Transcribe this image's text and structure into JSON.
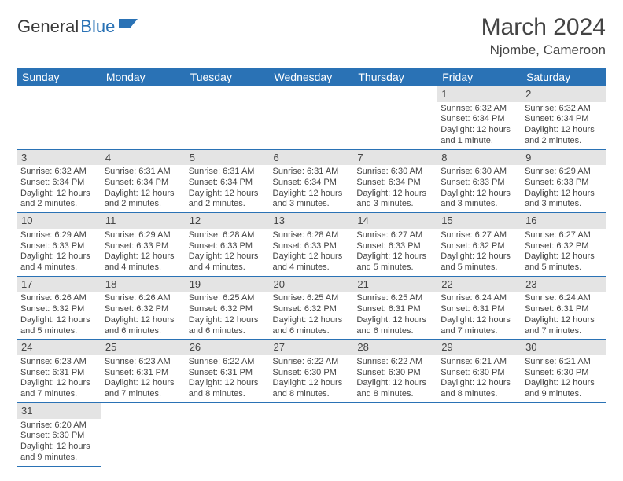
{
  "brand": {
    "part1": "General",
    "part2": "Blue"
  },
  "title": "March 2024",
  "location": "Njombe, Cameroon",
  "colors": {
    "header_bg": "#2a72b5",
    "daynum_bg": "#e4e4e4",
    "row_border": "#2a72b5",
    "text": "#444444",
    "page_bg": "#ffffff"
  },
  "day_headers": [
    "Sunday",
    "Monday",
    "Tuesday",
    "Wednesday",
    "Thursday",
    "Friday",
    "Saturday"
  ],
  "weeks": [
    [
      null,
      null,
      null,
      null,
      null,
      {
        "n": "1",
        "sr": "Sunrise: 6:32 AM",
        "ss": "Sunset: 6:34 PM",
        "dl": "Daylight: 12 hours and 1 minute."
      },
      {
        "n": "2",
        "sr": "Sunrise: 6:32 AM",
        "ss": "Sunset: 6:34 PM",
        "dl": "Daylight: 12 hours and 2 minutes."
      }
    ],
    [
      {
        "n": "3",
        "sr": "Sunrise: 6:32 AM",
        "ss": "Sunset: 6:34 PM",
        "dl": "Daylight: 12 hours and 2 minutes."
      },
      {
        "n": "4",
        "sr": "Sunrise: 6:31 AM",
        "ss": "Sunset: 6:34 PM",
        "dl": "Daylight: 12 hours and 2 minutes."
      },
      {
        "n": "5",
        "sr": "Sunrise: 6:31 AM",
        "ss": "Sunset: 6:34 PM",
        "dl": "Daylight: 12 hours and 2 minutes."
      },
      {
        "n": "6",
        "sr": "Sunrise: 6:31 AM",
        "ss": "Sunset: 6:34 PM",
        "dl": "Daylight: 12 hours and 3 minutes."
      },
      {
        "n": "7",
        "sr": "Sunrise: 6:30 AM",
        "ss": "Sunset: 6:34 PM",
        "dl": "Daylight: 12 hours and 3 minutes."
      },
      {
        "n": "8",
        "sr": "Sunrise: 6:30 AM",
        "ss": "Sunset: 6:33 PM",
        "dl": "Daylight: 12 hours and 3 minutes."
      },
      {
        "n": "9",
        "sr": "Sunrise: 6:29 AM",
        "ss": "Sunset: 6:33 PM",
        "dl": "Daylight: 12 hours and 3 minutes."
      }
    ],
    [
      {
        "n": "10",
        "sr": "Sunrise: 6:29 AM",
        "ss": "Sunset: 6:33 PM",
        "dl": "Daylight: 12 hours and 4 minutes."
      },
      {
        "n": "11",
        "sr": "Sunrise: 6:29 AM",
        "ss": "Sunset: 6:33 PM",
        "dl": "Daylight: 12 hours and 4 minutes."
      },
      {
        "n": "12",
        "sr": "Sunrise: 6:28 AM",
        "ss": "Sunset: 6:33 PM",
        "dl": "Daylight: 12 hours and 4 minutes."
      },
      {
        "n": "13",
        "sr": "Sunrise: 6:28 AM",
        "ss": "Sunset: 6:33 PM",
        "dl": "Daylight: 12 hours and 4 minutes."
      },
      {
        "n": "14",
        "sr": "Sunrise: 6:27 AM",
        "ss": "Sunset: 6:33 PM",
        "dl": "Daylight: 12 hours and 5 minutes."
      },
      {
        "n": "15",
        "sr": "Sunrise: 6:27 AM",
        "ss": "Sunset: 6:32 PM",
        "dl": "Daylight: 12 hours and 5 minutes."
      },
      {
        "n": "16",
        "sr": "Sunrise: 6:27 AM",
        "ss": "Sunset: 6:32 PM",
        "dl": "Daylight: 12 hours and 5 minutes."
      }
    ],
    [
      {
        "n": "17",
        "sr": "Sunrise: 6:26 AM",
        "ss": "Sunset: 6:32 PM",
        "dl": "Daylight: 12 hours and 5 minutes."
      },
      {
        "n": "18",
        "sr": "Sunrise: 6:26 AM",
        "ss": "Sunset: 6:32 PM",
        "dl": "Daylight: 12 hours and 6 minutes."
      },
      {
        "n": "19",
        "sr": "Sunrise: 6:25 AM",
        "ss": "Sunset: 6:32 PM",
        "dl": "Daylight: 12 hours and 6 minutes."
      },
      {
        "n": "20",
        "sr": "Sunrise: 6:25 AM",
        "ss": "Sunset: 6:32 PM",
        "dl": "Daylight: 12 hours and 6 minutes."
      },
      {
        "n": "21",
        "sr": "Sunrise: 6:25 AM",
        "ss": "Sunset: 6:31 PM",
        "dl": "Daylight: 12 hours and 6 minutes."
      },
      {
        "n": "22",
        "sr": "Sunrise: 6:24 AM",
        "ss": "Sunset: 6:31 PM",
        "dl": "Daylight: 12 hours and 7 minutes."
      },
      {
        "n": "23",
        "sr": "Sunrise: 6:24 AM",
        "ss": "Sunset: 6:31 PM",
        "dl": "Daylight: 12 hours and 7 minutes."
      }
    ],
    [
      {
        "n": "24",
        "sr": "Sunrise: 6:23 AM",
        "ss": "Sunset: 6:31 PM",
        "dl": "Daylight: 12 hours and 7 minutes."
      },
      {
        "n": "25",
        "sr": "Sunrise: 6:23 AM",
        "ss": "Sunset: 6:31 PM",
        "dl": "Daylight: 12 hours and 7 minutes."
      },
      {
        "n": "26",
        "sr": "Sunrise: 6:22 AM",
        "ss": "Sunset: 6:31 PM",
        "dl": "Daylight: 12 hours and 8 minutes."
      },
      {
        "n": "27",
        "sr": "Sunrise: 6:22 AM",
        "ss": "Sunset: 6:30 PM",
        "dl": "Daylight: 12 hours and 8 minutes."
      },
      {
        "n": "28",
        "sr": "Sunrise: 6:22 AM",
        "ss": "Sunset: 6:30 PM",
        "dl": "Daylight: 12 hours and 8 minutes."
      },
      {
        "n": "29",
        "sr": "Sunrise: 6:21 AM",
        "ss": "Sunset: 6:30 PM",
        "dl": "Daylight: 12 hours and 8 minutes."
      },
      {
        "n": "30",
        "sr": "Sunrise: 6:21 AM",
        "ss": "Sunset: 6:30 PM",
        "dl": "Daylight: 12 hours and 9 minutes."
      }
    ],
    [
      {
        "n": "31",
        "sr": "Sunrise: 6:20 AM",
        "ss": "Sunset: 6:30 PM",
        "dl": "Daylight: 12 hours and 9 minutes."
      },
      null,
      null,
      null,
      null,
      null,
      null
    ]
  ]
}
